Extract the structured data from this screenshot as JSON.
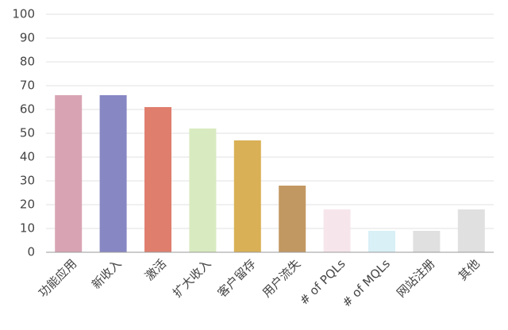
{
  "chart_data": {
    "type": "bar",
    "categories": [
      "功能应用",
      "新收入",
      "激活",
      "扩大收入",
      "客户留存",
      "用户流失",
      "# of PQLs",
      "# of MQLs",
      "网站注册",
      "其他"
    ],
    "values": [
      66,
      66,
      61,
      52,
      47,
      28,
      18,
      9,
      9,
      18
    ],
    "colors": [
      "#d8a4b4",
      "#8787c4",
      "#e07e6e",
      "#d8ebc0",
      "#d9b055",
      "#c29862",
      "#f6e6ec",
      "#d8f0f6",
      "#e0e0e0",
      "#e0e0e0"
    ],
    "ylim": [
      0,
      100
    ],
    "yticks": [
      0,
      10,
      20,
      30,
      40,
      50,
      60,
      70,
      80,
      90,
      100
    ],
    "grid": true
  }
}
